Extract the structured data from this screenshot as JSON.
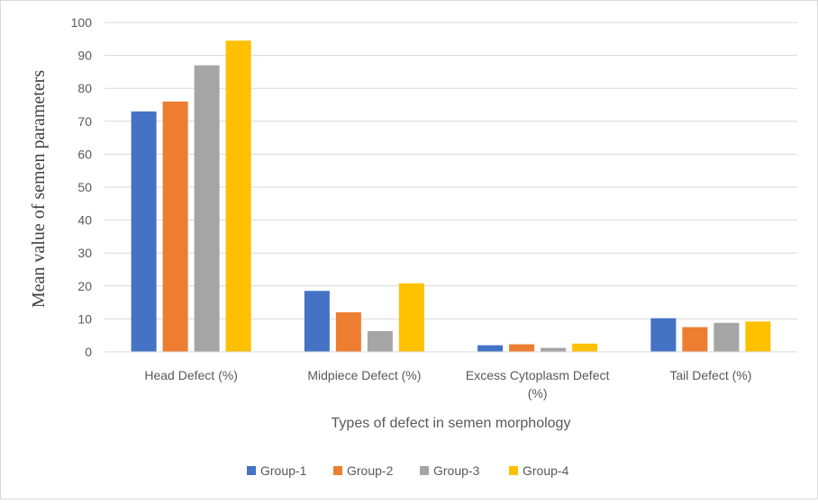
{
  "chart_data": {
    "type": "bar",
    "categories": [
      "Head Defect (%)",
      "Midpiece Defect (%)",
      "Excess Cytoplasm Defect (%)",
      "Tail Defect (%)"
    ],
    "category_label_lines": [
      [
        "Head Defect (%)"
      ],
      [
        "Midpiece Defect (%)"
      ],
      [
        "Excess Cytoplasm Defect",
        "(%)"
      ],
      [
        "Tail Defect (%)"
      ]
    ],
    "series": [
      {
        "name": "Group-1",
        "color": "#4472c4",
        "values": [
          73,
          18.5,
          2,
          10.2
        ]
      },
      {
        "name": "Group-2",
        "color": "#ed7d31",
        "values": [
          76,
          12,
          2.3,
          7.5
        ]
      },
      {
        "name": "Group-3",
        "color": "#a5a5a5",
        "values": [
          87,
          6.3,
          1.2,
          8.8
        ]
      },
      {
        "name": "Group-4",
        "color": "#ffc000",
        "values": [
          94.5,
          20.8,
          2.5,
          9.2
        ]
      }
    ],
    "xlabel": "Types of defect in semen morphology",
    "ylabel": "Mean value of semen parameters",
    "ylim": [
      0,
      100
    ],
    "yticks": [
      0,
      10,
      20,
      30,
      40,
      50,
      60,
      70,
      80,
      90,
      100
    ],
    "grid": true,
    "legend_position": "bottom"
  }
}
